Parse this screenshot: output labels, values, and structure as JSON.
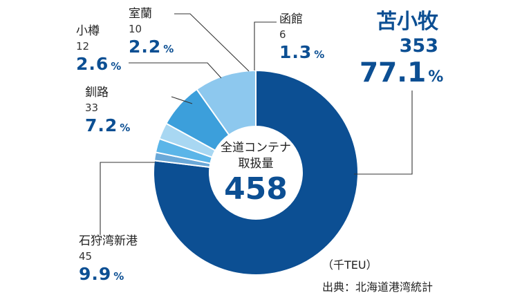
{
  "chart_data": {
    "type": "pie",
    "center_label_1": "全道コンテナ",
    "center_label_2": "取扱量",
    "total": "458",
    "unit": "（千TEU）",
    "source": "出典：北海道港湾統計",
    "colors": {
      "tomakomai": "#0c4f93",
      "ishikari": "#8dc8ee",
      "kushiro": "#3c9fdb",
      "otaru": "#a8d7f2",
      "muroran": "#5bb5e8",
      "hakodate": "#6aa8d8"
    },
    "slices": [
      {
        "name": "苫小牧",
        "value": "353",
        "percent": "77.1",
        "unit": "%",
        "color": "#0c4f93"
      },
      {
        "name": "函館",
        "value": "6",
        "percent": "1.3",
        "unit": "%",
        "color": "#6aa8d8"
      },
      {
        "name": "室蘭",
        "value": "10",
        "percent": "2.2",
        "unit": "%",
        "color": "#5bb5e8"
      },
      {
        "name": "小樽",
        "value": "12",
        "percent": "2.6",
        "unit": "%",
        "color": "#a8d7f2"
      },
      {
        "name": "釧路",
        "value": "33",
        "percent": "7.2",
        "unit": "%",
        "color": "#3c9fdb"
      },
      {
        "name": "石狩湾新港",
        "value": "45",
        "percent": "9.9",
        "unit": "%",
        "color": "#8dc8ee"
      }
    ]
  }
}
